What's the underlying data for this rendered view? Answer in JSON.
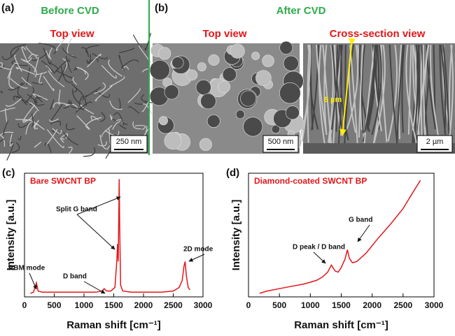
{
  "figure": {
    "panels": [
      "(a)",
      "(b)"
    ],
    "before": "Before CVD",
    "after": "After CVD",
    "views": [
      "Top view",
      "Top view",
      "Cross-section view"
    ],
    "scale_bars": [
      "250 nm",
      "500 nm",
      "2 µm"
    ],
    "thickness": "8 µm"
  },
  "chart_data": [
    {
      "type": "line",
      "panel": "(c)",
      "title": "Bare SWCNT BP",
      "xlabel": "Raman shift [cm⁻¹]",
      "ylabel": "Intensity [a.u.]",
      "x": [
        100,
        150,
        200,
        230,
        300,
        500,
        800,
        1000,
        1200,
        1300,
        1340,
        1380,
        1450,
        1520,
        1550,
        1565,
        1575,
        1585,
        1592,
        1600,
        1615,
        1650,
        1800,
        2000,
        2300,
        2500,
        2600,
        2650,
        2680,
        2700,
        2720,
        2750,
        2780
      ],
      "values": [
        3,
        4,
        12,
        5,
        4,
        4,
        4,
        4,
        4,
        5,
        7,
        5,
        5,
        8,
        30,
        45,
        30,
        70,
        100,
        60,
        10,
        5,
        4,
        4,
        4,
        5,
        8,
        14,
        26,
        30,
        18,
        8,
        6
      ],
      "color": "#e3161a",
      "xlim": [
        0,
        3000
      ],
      "xticks": [
        0,
        500,
        1000,
        1500,
        2000,
        2500,
        3000
      ],
      "ylim": [
        0,
        105
      ],
      "annotations": [
        "RBM mode",
        "D band",
        "Split G band",
        "2D mode"
      ]
    },
    {
      "type": "line",
      "panel": "(d)",
      "title": "Diamond-coated SWCNT BP",
      "xlabel": "Raman shift [cm⁻¹]",
      "ylabel": "Intensity [a.u.]",
      "x": [
        180,
        300,
        500,
        700,
        900,
        1100,
        1200,
        1280,
        1340,
        1400,
        1450,
        1500,
        1560,
        1600,
        1630,
        1680,
        1750,
        1900,
        2100,
        2300,
        2500,
        2650,
        2780
      ],
      "values": [
        3,
        5,
        7,
        9,
        11,
        14,
        17,
        21,
        27,
        22,
        21,
        25,
        32,
        40,
        33,
        29,
        30,
        37,
        50,
        62,
        75,
        88,
        99
      ],
      "color": "#e3161a",
      "xlim": [
        0,
        3000
      ],
      "xticks": [
        0,
        500,
        1000,
        1500,
        2000,
        2500,
        3000
      ],
      "ylim": [
        0,
        105
      ],
      "annotations": [
        "D peak / D band",
        "G band"
      ]
    }
  ]
}
